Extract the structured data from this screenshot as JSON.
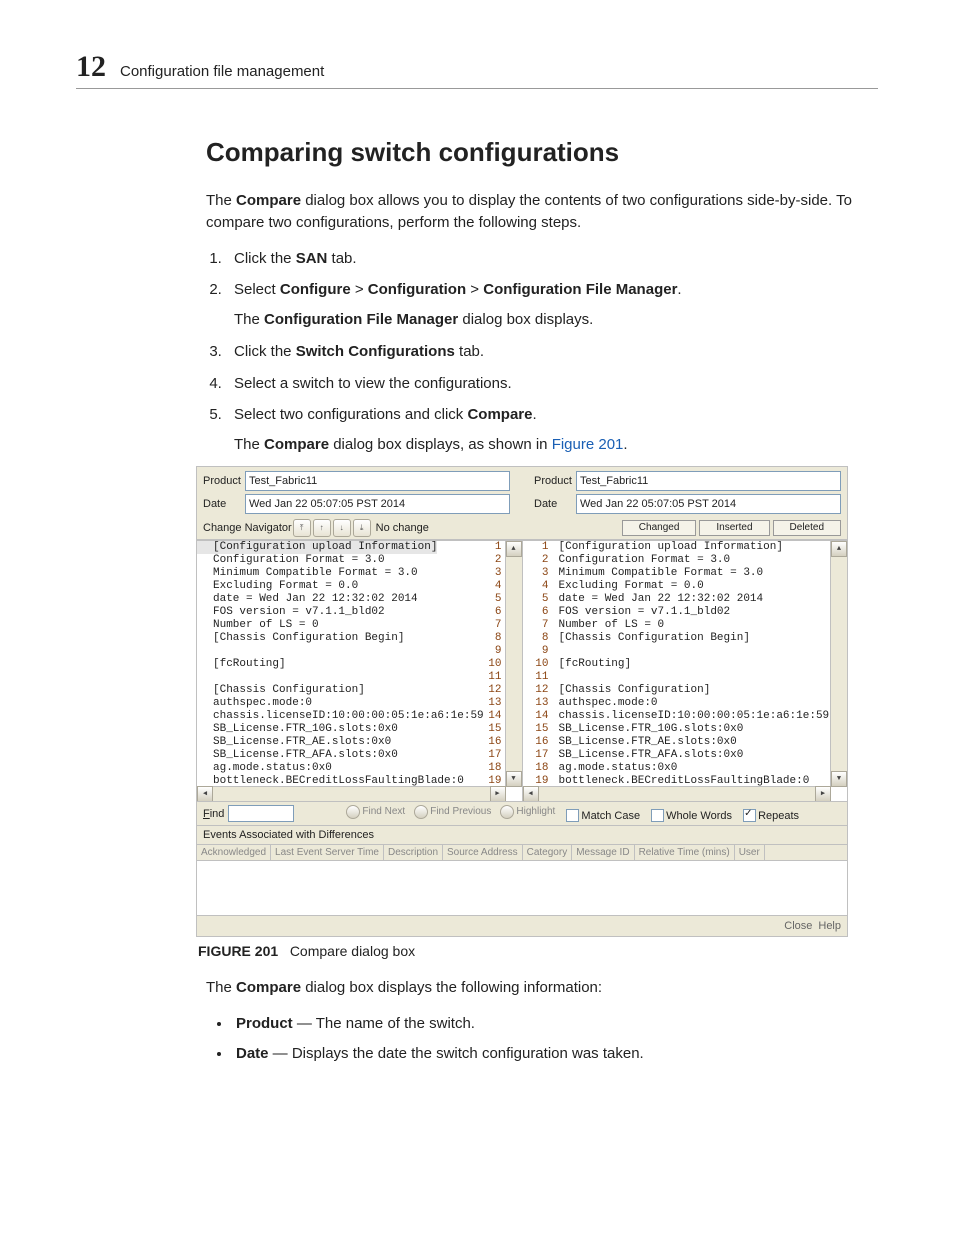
{
  "header": {
    "page_number": "12",
    "chapter_title": "Configuration file management"
  },
  "section": {
    "heading": "Comparing switch configurations",
    "intro_pre": "The ",
    "intro_bold": "Compare",
    "intro_post": " dialog box allows you to display the contents of two configurations side-by-side. To compare two configurations, perform the following steps.",
    "step1_pre": "Click the ",
    "step1_bold": "SAN",
    "step1_post": " tab.",
    "step2_pre": "Select ",
    "step2_b1": "Configure",
    "step2_sep1": " > ",
    "step2_b2": "Configuration",
    "step2_sep2": " > ",
    "step2_b3": "Configuration File Manager",
    "step2_end": ".",
    "step2_sub_pre": "The ",
    "step2_sub_bold": "Configuration File Manager",
    "step2_sub_post": " dialog box displays.",
    "step3_pre": "Click the ",
    "step3_bold": "Switch Configurations",
    "step3_post": " tab.",
    "step4": "Select a switch to view the configurations.",
    "step5_pre": "Select two configurations and click ",
    "step5_bold": "Compare",
    "step5_post": ".",
    "step5_sub_pre": "The ",
    "step5_sub_bold": "Compare",
    "step5_sub_mid": " dialog box displays, as shown in ",
    "step5_sub_link": "Figure 201",
    "step5_sub_end": ".",
    "fig_label": "FIGURE 201",
    "fig_caption": "Compare dialog box",
    "after_fig_pre": "The ",
    "after_fig_bold": "Compare",
    "after_fig_post": " dialog box displays the following information:",
    "bullet1_bold": "Product",
    "bullet1_rest": " — The name of the switch.",
    "bullet2_bold": "Date",
    "bullet2_rest": " — Displays the date the switch configuration was taken."
  },
  "dialog": {
    "product_label": "Product",
    "date_label": "Date",
    "product_value": "Test_Fabric11",
    "date_value": "Wed Jan 22 05:07:05 PST 2014",
    "nav_label": "Change Navigator",
    "no_change": "No change",
    "legend_changed": "Changed",
    "legend_inserted": "Inserted",
    "legend_deleted": "Deleted",
    "find_label": "Find",
    "find_next": "Find Next",
    "find_prev": "Find Previous",
    "highlight": "Highlight",
    "match_case": "Match Case",
    "whole_words": "Whole Words",
    "repeats": "Repeats",
    "events_header": "Events Associated with Differences",
    "event_cols": [
      "Acknowledged",
      "Last Event Server Time",
      "Description",
      "Source Address",
      "Category",
      "Message ID",
      "Relative Time (mins)",
      "User"
    ],
    "close": "Close",
    "help": "Help",
    "lines": [
      "[Configuration upload Information]",
      "Configuration Format = 3.0",
      "Minimum Compatible Format = 3.0",
      "Excluding Format = 0.0",
      "date = Wed Jan 22 12:32:02 2014",
      "FOS version = v7.1.1_bld02",
      "Number of LS = 0",
      "[Chassis Configuration Begin]",
      "",
      "[fcRouting]",
      "",
      "[Chassis Configuration]",
      "authspec.mode:0",
      "chassis.licenseID:10:00:00:05:1e:a6:1e:59",
      "SB_License.FTR_10G.slots:0x0",
      "SB_License.FTR_AE.slots:0x0",
      "SB_License.FTR_AFA.slots:0x0",
      "ag.mode.status:0x0",
      "bottleneck.BECreditLossFaultingBlade:0"
    ]
  }
}
